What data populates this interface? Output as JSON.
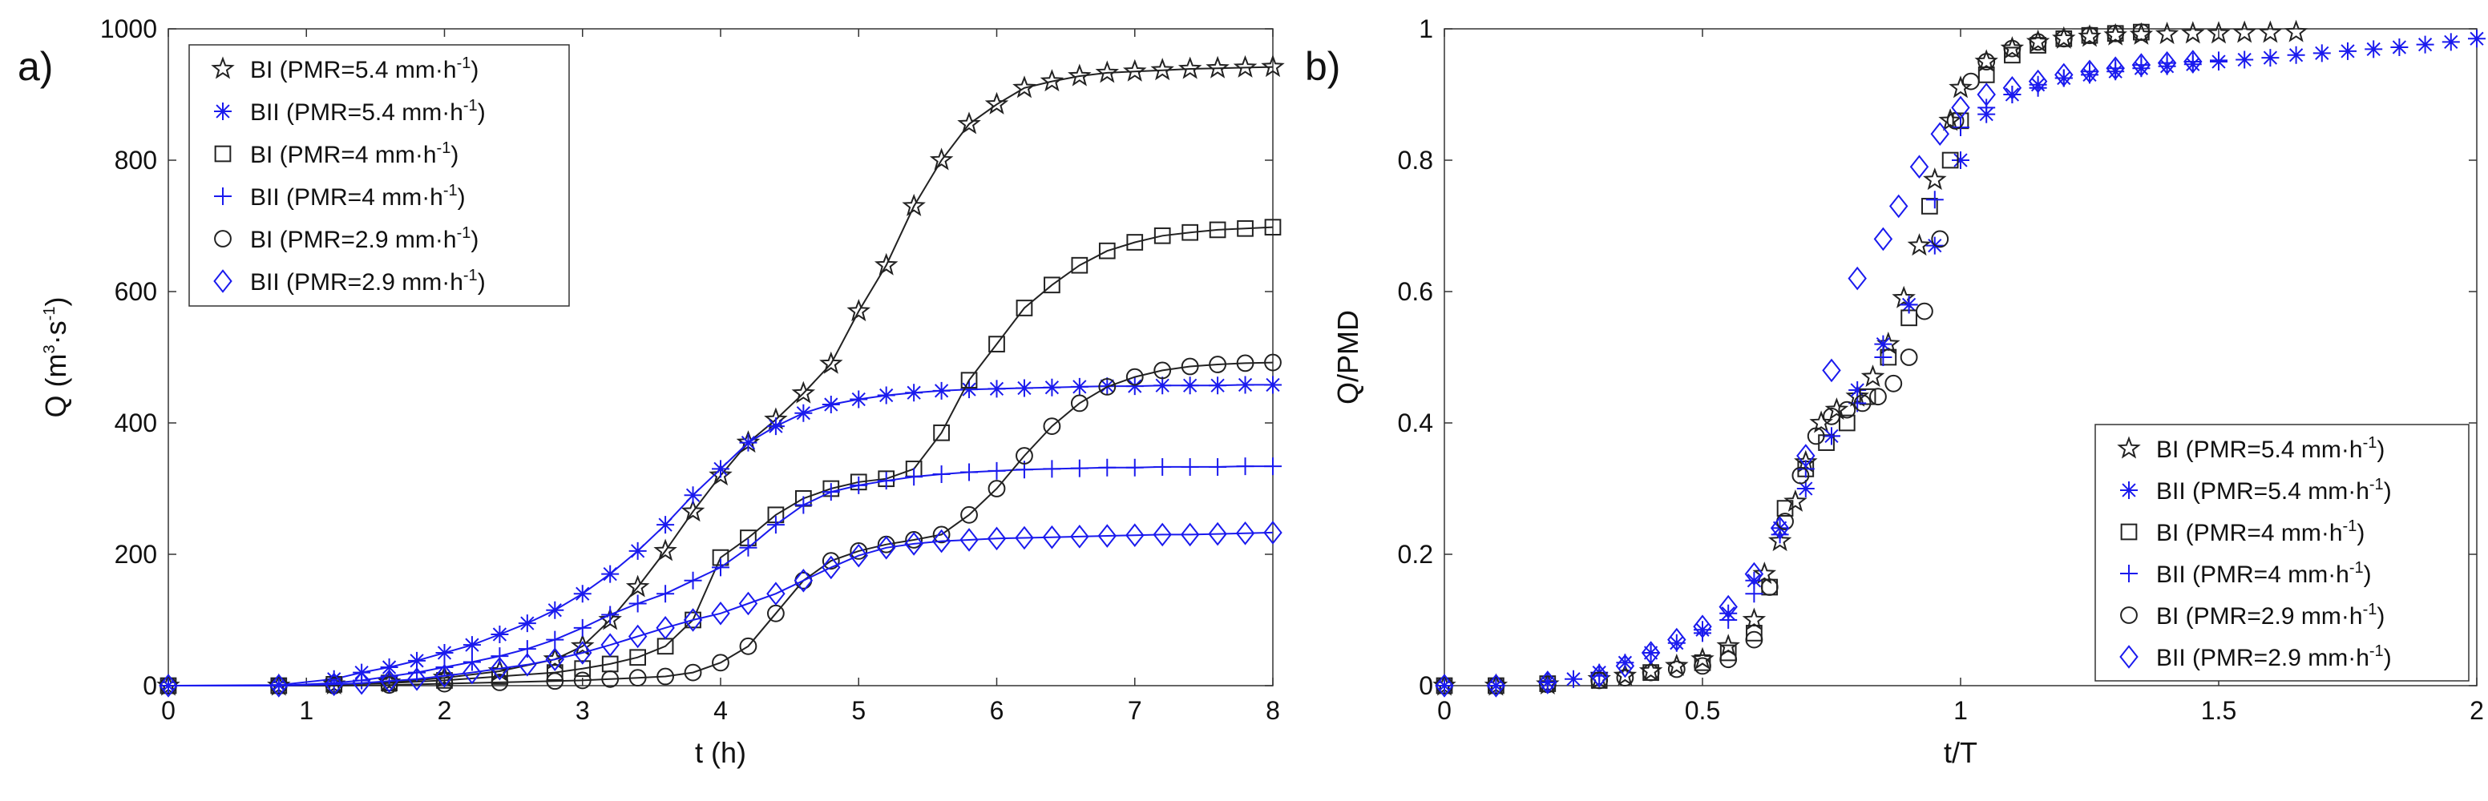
{
  "colors": {
    "black": "#222222",
    "blue": "#1a1aee"
  },
  "chart_data": [
    {
      "type": "line",
      "panel_label": "a)",
      "xlabel": "t (h)",
      "ylabel": {
        "main": "Q (m",
        "sup1": "3",
        "mid": "·s",
        "sup2": "-1",
        "end": ")"
      },
      "xlim": [
        0,
        8
      ],
      "ylim": [
        0,
        1000
      ],
      "xticks": [
        0,
        1,
        2,
        3,
        4,
        5,
        6,
        7,
        8
      ],
      "yticks": [
        0,
        200,
        400,
        600,
        800,
        1000
      ],
      "series": [
        {
          "name": "BI (PMR=5.4 mm·h",
          "legend_sup": "-1",
          "legend_end": ")",
          "color": "black",
          "marker": "star",
          "line": true,
          "x": [
            0,
            0.8,
            1.2,
            1.6,
            2.0,
            2.4,
            2.8,
            3.0,
            3.2,
            3.4,
            3.6,
            3.8,
            4.0,
            4.2,
            4.4,
            4.6,
            4.8,
            5.0,
            5.2,
            5.4,
            5.6,
            5.8,
            6.0,
            6.2,
            6.4,
            6.6,
            6.8,
            7.0,
            7.2,
            7.4,
            7.6,
            7.8,
            8.0
          ],
          "y": [
            0,
            0,
            2,
            5,
            12,
            22,
            40,
            60,
            100,
            150,
            205,
            265,
            320,
            370,
            405,
            445,
            490,
            570,
            640,
            730,
            800,
            855,
            885,
            910,
            920,
            928,
            933,
            935,
            937,
            939,
            940,
            941,
            942
          ]
        },
        {
          "name": "BII (PMR=5.4 mm·h",
          "legend_sup": "-1",
          "legend_end": ")",
          "color": "blue",
          "marker": "asterisk",
          "line": true,
          "x": [
            0,
            0.8,
            1.2,
            1.4,
            1.6,
            1.8,
            2.0,
            2.2,
            2.4,
            2.6,
            2.8,
            3.0,
            3.2,
            3.4,
            3.6,
            3.8,
            4.0,
            4.2,
            4.4,
            4.6,
            4.8,
            5.0,
            5.2,
            5.4,
            5.6,
            5.8,
            6.0,
            6.2,
            6.4,
            6.6,
            6.8,
            7.0,
            7.2,
            7.4,
            7.6,
            7.8,
            8.0
          ],
          "y": [
            0,
            1,
            10,
            20,
            28,
            38,
            50,
            62,
            78,
            95,
            115,
            140,
            170,
            205,
            245,
            290,
            330,
            370,
            395,
            415,
            428,
            436,
            442,
            446,
            449,
            451,
            452,
            453,
            454,
            455,
            456,
            456,
            457,
            457,
            457,
            458,
            458
          ]
        },
        {
          "name": "BI (PMR=4 mm·h",
          "legend_sup": "-1",
          "legend_end": ")",
          "color": "black",
          "marker": "square",
          "line": true,
          "x": [
            0,
            0.8,
            1.2,
            1.6,
            2.0,
            2.4,
            2.8,
            3.0,
            3.2,
            3.4,
            3.6,
            3.8,
            4.0,
            4.2,
            4.4,
            4.6,
            4.8,
            5.0,
            5.2,
            5.4,
            5.6,
            5.8,
            6.0,
            6.2,
            6.4,
            6.6,
            6.8,
            7.0,
            7.2,
            7.4,
            7.6,
            7.8,
            8.0
          ],
          "y": [
            0,
            0,
            2,
            4,
            8,
            14,
            20,
            26,
            33,
            43,
            60,
            100,
            195,
            225,
            260,
            285,
            300,
            310,
            315,
            330,
            385,
            465,
            520,
            575,
            610,
            640,
            662,
            675,
            685,
            690,
            694,
            696,
            698
          ]
        },
        {
          "name": "BII (PMR=4 mm·h",
          "legend_sup": "-1",
          "legend_end": ")",
          "color": "blue",
          "marker": "plus",
          "line": true,
          "x": [
            0,
            0.8,
            1.2,
            1.4,
            1.6,
            1.8,
            2.0,
            2.2,
            2.4,
            2.6,
            2.8,
            3.0,
            3.2,
            3.4,
            3.6,
            3.8,
            4.0,
            4.2,
            4.4,
            4.6,
            4.8,
            5.0,
            5.2,
            5.4,
            5.6,
            5.8,
            6.0,
            6.2,
            6.4,
            6.6,
            6.8,
            7.0,
            7.2,
            7.4,
            7.6,
            7.8,
            8.0
          ],
          "y": [
            0,
            0,
            4,
            8,
            14,
            20,
            28,
            36,
            45,
            56,
            70,
            88,
            108,
            125,
            140,
            160,
            180,
            210,
            245,
            275,
            295,
            305,
            312,
            318,
            322,
            325,
            327,
            329,
            330,
            331,
            332,
            332,
            333,
            333,
            333,
            334,
            334
          ]
        },
        {
          "name": "BI (PMR=2.9 mm·h",
          "legend_sup": "-1",
          "legend_end": ")",
          "color": "black",
          "marker": "circle",
          "line": true,
          "x": [
            0,
            0.8,
            1.2,
            1.6,
            2.0,
            2.4,
            2.8,
            3.0,
            3.2,
            3.4,
            3.6,
            3.8,
            4.0,
            4.2,
            4.4,
            4.6,
            4.8,
            5.0,
            5.2,
            5.4,
            5.6,
            5.8,
            6.0,
            6.2,
            6.4,
            6.6,
            6.8,
            7.0,
            7.2,
            7.4,
            7.6,
            7.8,
            8.0
          ],
          "y": [
            0,
            0,
            0,
            1,
            3,
            5,
            7,
            8,
            10,
            12,
            14,
            20,
            35,
            60,
            110,
            160,
            190,
            205,
            215,
            222,
            230,
            260,
            300,
            350,
            395,
            430,
            455,
            470,
            480,
            486,
            489,
            491,
            492
          ]
        },
        {
          "name": "BII (PMR=2.9 mm·h",
          "legend_sup": "-1",
          "legend_end": ")",
          "color": "blue",
          "marker": "diamond",
          "line": true,
          "x": [
            0,
            0.8,
            1.2,
            1.4,
            1.6,
            1.8,
            2.0,
            2.2,
            2.4,
            2.6,
            2.8,
            3.0,
            3.2,
            3.4,
            3.6,
            3.8,
            4.0,
            4.2,
            4.4,
            4.6,
            4.8,
            5.0,
            5.2,
            5.4,
            5.6,
            5.8,
            6.0,
            6.2,
            6.4,
            6.6,
            6.8,
            7.0,
            7.2,
            7.4,
            7.6,
            7.8,
            8.0
          ],
          "y": [
            0,
            0,
            2,
            4,
            7,
            10,
            15,
            20,
            26,
            32,
            40,
            50,
            62,
            75,
            88,
            100,
            110,
            125,
            140,
            160,
            180,
            198,
            210,
            216,
            220,
            222,
            224,
            225,
            226,
            227,
            228,
            229,
            230,
            230,
            231,
            232,
            233
          ]
        }
      ],
      "legend": {
        "position": "top-left"
      }
    },
    {
      "type": "scatter",
      "panel_label": "b)",
      "xlabel": "t/T",
      "ylabel": {
        "main": "Q/PMD"
      },
      "xlim": [
        0,
        2
      ],
      "ylim": [
        0,
        1
      ],
      "xticks": [
        0,
        0.5,
        1,
        1.5,
        2
      ],
      "yticks": [
        0,
        0.2,
        0.4,
        0.6,
        0.8,
        1
      ],
      "series": [
        {
          "name": "BI (PMR=5.4 mm·h",
          "legend_sup": "-1",
          "legend_end": ")",
          "color": "black",
          "marker": "star",
          "x": [
            0,
            0.1,
            0.2,
            0.3,
            0.35,
            0.4,
            0.45,
            0.5,
            0.55,
            0.6,
            0.62,
            0.65,
            0.68,
            0.7,
            0.73,
            0.76,
            0.8,
            0.83,
            0.86,
            0.89,
            0.92,
            0.95,
            0.98,
            1.0,
            1.05,
            1.1,
            1.15,
            1.2,
            1.25,
            1.3,
            1.35,
            1.4,
            1.45,
            1.5,
            1.55,
            1.6,
            1.65
          ],
          "y": [
            0,
            0,
            0.002,
            0.01,
            0.015,
            0.022,
            0.03,
            0.04,
            0.06,
            0.1,
            0.17,
            0.22,
            0.28,
            0.34,
            0.4,
            0.42,
            0.44,
            0.47,
            0.52,
            0.59,
            0.67,
            0.77,
            0.86,
            0.91,
            0.95,
            0.97,
            0.98,
            0.985,
            0.988,
            0.99,
            0.991,
            0.992,
            0.993,
            0.993,
            0.994,
            0.994,
            0.995
          ]
        },
        {
          "name": "BII (PMR=5.4 mm·h",
          "legend_sup": "-1",
          "legend_end": ")",
          "color": "blue",
          "marker": "asterisk",
          "x": [
            0,
            0.1,
            0.2,
            0.25,
            0.3,
            0.35,
            0.4,
            0.45,
            0.5,
            0.55,
            0.6,
            0.65,
            0.7,
            0.75,
            0.8,
            0.85,
            0.9,
            0.95,
            1.0,
            1.05,
            1.1,
            1.15,
            1.2,
            1.25,
            1.3,
            1.35,
            1.4,
            1.45,
            1.5,
            1.55,
            1.6,
            1.65,
            1.7,
            1.75,
            1.8,
            1.85,
            1.9,
            1.95,
            2.0
          ],
          "y": [
            0,
            0,
            0.005,
            0.01,
            0.02,
            0.035,
            0.05,
            0.065,
            0.085,
            0.11,
            0.16,
            0.24,
            0.3,
            0.38,
            0.45,
            0.52,
            0.58,
            0.67,
            0.8,
            0.87,
            0.9,
            0.915,
            0.925,
            0.93,
            0.935,
            0.94,
            0.943,
            0.946,
            0.95,
            0.953,
            0.956,
            0.96,
            0.963,
            0.966,
            0.969,
            0.972,
            0.976,
            0.98,
            0.985
          ]
        },
        {
          "name": "BI (PMR=4 mm·h",
          "legend_sup": "-1",
          "legend_end": ")",
          "color": "black",
          "marker": "square",
          "x": [
            0,
            0.1,
            0.2,
            0.3,
            0.4,
            0.5,
            0.55,
            0.6,
            0.63,
            0.66,
            0.7,
            0.74,
            0.78,
            0.82,
            0.86,
            0.9,
            0.94,
            0.98,
            1.0,
            1.05,
            1.1,
            1.15,
            1.2,
            1.25,
            1.3,
            1.35
          ],
          "y": [
            0,
            0,
            0.003,
            0.008,
            0.02,
            0.035,
            0.05,
            0.08,
            0.15,
            0.27,
            0.33,
            0.37,
            0.4,
            0.44,
            0.5,
            0.56,
            0.73,
            0.8,
            0.86,
            0.93,
            0.96,
            0.975,
            0.985,
            0.99,
            0.993,
            0.995
          ]
        },
        {
          "name": "BII (PMR=4 mm·h",
          "legend_sup": "-1",
          "legend_end": ")",
          "color": "blue",
          "marker": "plus",
          "x": [
            0,
            0.1,
            0.2,
            0.3,
            0.4,
            0.5,
            0.55,
            0.6,
            0.65,
            0.7,
            0.75,
            0.8,
            0.85,
            0.9,
            0.95,
            1.0,
            1.05,
            1.1,
            1.15,
            1.2,
            1.25,
            1.3,
            1.35,
            1.4,
            1.45,
            1.5
          ],
          "y": [
            0,
            0,
            0.005,
            0.015,
            0.05,
            0.08,
            0.1,
            0.14,
            0.23,
            0.33,
            0.38,
            0.43,
            0.5,
            0.58,
            0.74,
            0.85,
            0.88,
            0.9,
            0.91,
            0.925,
            0.935,
            0.94,
            0.945,
            0.948,
            0.95,
            0.952
          ]
        },
        {
          "name": "BI (PMR=2.9 mm·h",
          "legend_sup": "-1",
          "legend_end": ")",
          "color": "black",
          "marker": "circle",
          "x": [
            0,
            0.1,
            0.2,
            0.3,
            0.35,
            0.4,
            0.45,
            0.5,
            0.55,
            0.6,
            0.63,
            0.66,
            0.69,
            0.72,
            0.75,
            0.78,
            0.81,
            0.84,
            0.87,
            0.9,
            0.93,
            0.96,
            0.99,
            1.02,
            1.05,
            1.1,
            1.15,
            1.2,
            1.25,
            1.3,
            1.35
          ],
          "y": [
            0,
            0,
            0.002,
            0.008,
            0.012,
            0.02,
            0.025,
            0.03,
            0.04,
            0.07,
            0.15,
            0.25,
            0.32,
            0.38,
            0.41,
            0.42,
            0.43,
            0.44,
            0.46,
            0.5,
            0.57,
            0.68,
            0.86,
            0.92,
            0.95,
            0.97,
            0.98,
            0.985,
            0.99,
            0.993,
            0.995
          ]
        },
        {
          "name": "BII (PMR=2.9 mm·h",
          "legend_sup": "-1",
          "legend_end": ")",
          "color": "blue",
          "marker": "diamond",
          "x": [
            0,
            0.1,
            0.2,
            0.3,
            0.35,
            0.4,
            0.45,
            0.5,
            0.55,
            0.6,
            0.65,
            0.7,
            0.75,
            0.8,
            0.85,
            0.88,
            0.92,
            0.96,
            1.0,
            1.05,
            1.1,
            1.15,
            1.2,
            1.25,
            1.3,
            1.35,
            1.4,
            1.45
          ],
          "y": [
            0,
            0,
            0.005,
            0.015,
            0.03,
            0.05,
            0.07,
            0.09,
            0.12,
            0.17,
            0.24,
            0.35,
            0.48,
            0.62,
            0.68,
            0.73,
            0.79,
            0.84,
            0.88,
            0.9,
            0.91,
            0.92,
            0.93,
            0.935,
            0.94,
            0.945,
            0.948,
            0.95
          ]
        }
      ],
      "legend": {
        "position": "bottom-right"
      }
    }
  ]
}
